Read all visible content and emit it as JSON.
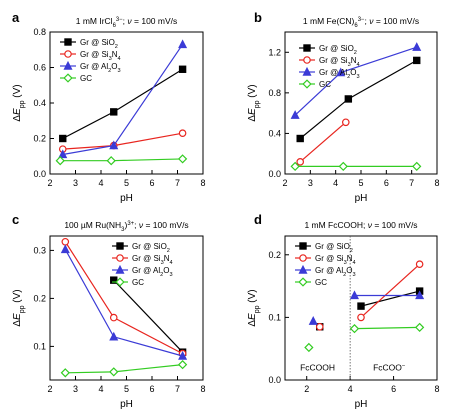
{
  "colors": {
    "black": "#000000",
    "red": "#e8251f",
    "blue": "#3b3bd6",
    "green": "#33cc22"
  },
  "chart_data": [
    {
      "type": "line",
      "panel_letter": "a",
      "title_parts": [
        {
          "t": "1 mM IrCl"
        },
        {
          "t": "6",
          "sub": true
        },
        {
          "t": "3−",
          "sup": true
        },
        {
          "t": "; "
        },
        {
          "t": "ν",
          "it": true
        },
        {
          "t": " = 100 mV/s"
        }
      ],
      "xlabel": "pH",
      "ylabel_parts": [
        {
          "t": "Δ"
        },
        {
          "t": "E",
          "it": true
        },
        {
          "t": "pp",
          "sub": true
        },
        {
          "t": " (V)"
        }
      ],
      "xlim": [
        2,
        8
      ],
      "ylim": [
        0,
        0.8
      ],
      "xticks": [
        "2",
        "3",
        "4",
        "5",
        "6",
        "7",
        "8"
      ],
      "yticks": [
        "0.0",
        "0.2",
        "0.4",
        "0.6",
        "0.8"
      ],
      "legend_position": "top-left",
      "series": [
        {
          "name_parts": [
            {
              "t": "Gr @ SiO"
            },
            {
              "t": "2",
              "sub": true
            }
          ],
          "color": "#000000",
          "marker": "square",
          "x": [
            2.5,
            4.5,
            7.2
          ],
          "y": [
            0.2,
            0.35,
            0.59
          ]
        },
        {
          "name_parts": [
            {
              "t": "Gr @ Si"
            },
            {
              "t": "3",
              "sub": true
            },
            {
              "t": "N"
            },
            {
              "t": "4",
              "sub": true
            }
          ],
          "color": "#e8251f",
          "marker": "circle",
          "x": [
            2.5,
            4.5,
            7.2
          ],
          "y": [
            0.14,
            0.16,
            0.23
          ]
        },
        {
          "name_parts": [
            {
              "t": "Gr @ Al"
            },
            {
              "t": "2",
              "sub": true
            },
            {
              "t": "O"
            },
            {
              "t": "3",
              "sub": true
            }
          ],
          "color": "#3b3bd6",
          "marker": "triangle",
          "x": [
            2.5,
            4.5,
            7.2
          ],
          "y": [
            0.11,
            0.16,
            0.73
          ]
        },
        {
          "name_parts": [
            {
              "t": "GC"
            }
          ],
          "color": "#33cc22",
          "marker": "diamond",
          "x": [
            2.4,
            4.4,
            7.2
          ],
          "y": [
            0.075,
            0.075,
            0.085
          ]
        }
      ]
    },
    {
      "type": "line",
      "panel_letter": "b",
      "title_parts": [
        {
          "t": "1 mM Fe(CN)"
        },
        {
          "t": "6",
          "sub": true
        },
        {
          "t": "3−",
          "sup": true
        },
        {
          "t": "; "
        },
        {
          "t": "ν",
          "it": true
        },
        {
          "t": " = 100 mV/s"
        }
      ],
      "xlabel": "pH",
      "ylabel_parts": [
        {
          "t": "Δ"
        },
        {
          "t": "E",
          "it": true
        },
        {
          "t": "pp",
          "sub": true
        },
        {
          "t": " (V)"
        }
      ],
      "xlim": [
        2,
        8
      ],
      "ylim": [
        0,
        1.4
      ],
      "xticks": [
        "2",
        "3",
        "4",
        "5",
        "6",
        "7",
        "8"
      ],
      "yticks": [
        "0.0",
        "0.4",
        "0.8",
        "1.2"
      ],
      "legend_position": "top",
      "series": [
        {
          "name_parts": [
            {
              "t": "Gr @ SiO"
            },
            {
              "t": "2",
              "sub": true
            }
          ],
          "color": "#000000",
          "marker": "square",
          "x": [
            2.6,
            4.5,
            7.2
          ],
          "y": [
            0.35,
            0.74,
            1.12
          ]
        },
        {
          "name_parts": [
            {
              "t": "Gr @ Si"
            },
            {
              "t": "3",
              "sub": true
            },
            {
              "t": "N"
            },
            {
              "t": "4",
              "sub": true
            }
          ],
          "color": "#e8251f",
          "marker": "circle",
          "x": [
            2.6,
            4.4
          ],
          "y": [
            0.12,
            0.51
          ]
        },
        {
          "name_parts": [
            {
              "t": "Gr @ Al"
            },
            {
              "t": "2",
              "sub": true
            },
            {
              "t": "O"
            },
            {
              "t": "3",
              "sub": true
            }
          ],
          "color": "#3b3bd6",
          "marker": "triangle",
          "x": [
            2.4,
            4.2,
            7.2
          ],
          "y": [
            0.58,
            1.0,
            1.25
          ]
        },
        {
          "name_parts": [
            {
              "t": "GC"
            }
          ],
          "color": "#33cc22",
          "marker": "diamond",
          "x": [
            2.4,
            4.3,
            7.2
          ],
          "y": [
            0.075,
            0.075,
            0.075
          ]
        }
      ]
    },
    {
      "type": "line",
      "panel_letter": "c",
      "title_parts": [
        {
          "t": "100 µM Ru(NH"
        },
        {
          "t": "3",
          "sub": true
        },
        {
          "t": ")"
        },
        {
          "t": "3+",
          "sup": true
        },
        {
          "t": "; "
        },
        {
          "t": "ν",
          "it": true
        },
        {
          "t": " = 100 mV/s"
        }
      ],
      "xlabel": "pH",
      "ylabel_parts": [
        {
          "t": "Δ"
        },
        {
          "t": "E",
          "it": true
        },
        {
          "t": "pp",
          "sub": true
        },
        {
          "t": " (V)"
        }
      ],
      "xlim": [
        2,
        8
      ],
      "ylim": [
        0.03,
        0.33
      ],
      "xticks": [
        "2",
        "3",
        "4",
        "5",
        "6",
        "7",
        "8"
      ],
      "yticks": [
        "0.1",
        "0.2",
        "0.3"
      ],
      "legend_position": "right",
      "series": [
        {
          "name_parts": [
            {
              "t": "Gr @ SiO"
            },
            {
              "t": "2",
              "sub": true
            }
          ],
          "color": "#000000",
          "marker": "square",
          "x": [
            4.5,
            7.2
          ],
          "y": [
            0.238,
            0.088
          ]
        },
        {
          "name_parts": [
            {
              "t": "Gr @ Si"
            },
            {
              "t": "3",
              "sub": true
            },
            {
              "t": "N"
            },
            {
              "t": "4",
              "sub": true
            }
          ],
          "color": "#e8251f",
          "marker": "circle",
          "x": [
            2.6,
            4.5,
            7.2
          ],
          "y": [
            0.318,
            0.16,
            0.085
          ]
        },
        {
          "name_parts": [
            {
              "t": "Gr @ Al"
            },
            {
              "t": "2",
              "sub": true
            },
            {
              "t": "O"
            },
            {
              "t": "3",
              "sub": true
            }
          ],
          "color": "#3b3bd6",
          "marker": "triangle",
          "x": [
            2.6,
            4.5,
            7.2
          ],
          "y": [
            0.302,
            0.12,
            0.08
          ]
        },
        {
          "name_parts": [
            {
              "t": "GC"
            }
          ],
          "color": "#33cc22",
          "marker": "diamond",
          "x": [
            2.6,
            4.5,
            7.2
          ],
          "y": [
            0.045,
            0.047,
            0.062
          ]
        }
      ]
    },
    {
      "type": "scatter",
      "panel_letter": "d",
      "title_parts": [
        {
          "t": "1 mM FcCOOH; "
        },
        {
          "t": "ν",
          "it": true
        },
        {
          "t": " = 100 mV/s"
        }
      ],
      "xlabel": "pH",
      "ylabel_parts": [
        {
          "t": "Δ"
        },
        {
          "t": "E",
          "it": true
        },
        {
          "t": "pp",
          "sub": true
        },
        {
          "t": " (V)"
        }
      ],
      "xlim": [
        1,
        8
      ],
      "ylim": [
        0,
        0.23
      ],
      "xticks": [
        "2",
        "4",
        "6",
        "8"
      ],
      "yticks": [
        "0.0",
        "0.1",
        "0.2"
      ],
      "legend_position": "top-left",
      "divider_x": 4.0,
      "annotations": [
        {
          "text": "FcCOOH",
          "x": 2.5,
          "y": 0.015
        },
        {
          "text": "FcCOO",
          "sup": "−",
          "x": 5.8,
          "y": 0.015
        }
      ],
      "series": [
        {
          "name_parts": [
            {
              "t": "Gr @ SiO"
            },
            {
              "t": "2",
              "sub": true
            }
          ],
          "color": "#000000",
          "marker": "square",
          "x": [
            2.6,
            4.5,
            7.2
          ],
          "y": [
            0.085,
            0.118,
            0.142
          ],
          "connect_from": 1
        },
        {
          "name_parts": [
            {
              "t": "Gr @ Si"
            },
            {
              "t": "3",
              "sub": true
            },
            {
              "t": "N"
            },
            {
              "t": "4",
              "sub": true
            }
          ],
          "color": "#e8251f",
          "marker": "circle",
          "x": [
            2.6,
            4.5,
            7.2
          ],
          "y": [
            0.085,
            0.1,
            0.185
          ],
          "connect_from": 1
        },
        {
          "name_parts": [
            {
              "t": "Gr @ Al"
            },
            {
              "t": "2",
              "sub": true
            },
            {
              "t": "O"
            },
            {
              "t": "3",
              "sub": true
            }
          ],
          "color": "#3b3bd6",
          "marker": "triangle",
          "x": [
            2.3,
            4.2,
            7.2
          ],
          "y": [
            0.094,
            0.135,
            0.135
          ],
          "connect_from": 1
        },
        {
          "name_parts": [
            {
              "t": "GC"
            }
          ],
          "color": "#33cc22",
          "marker": "diamond",
          "x": [
            2.1,
            4.2,
            7.2
          ],
          "y": [
            0.052,
            0.082,
            0.084
          ],
          "connect_from": 1
        }
      ]
    }
  ]
}
